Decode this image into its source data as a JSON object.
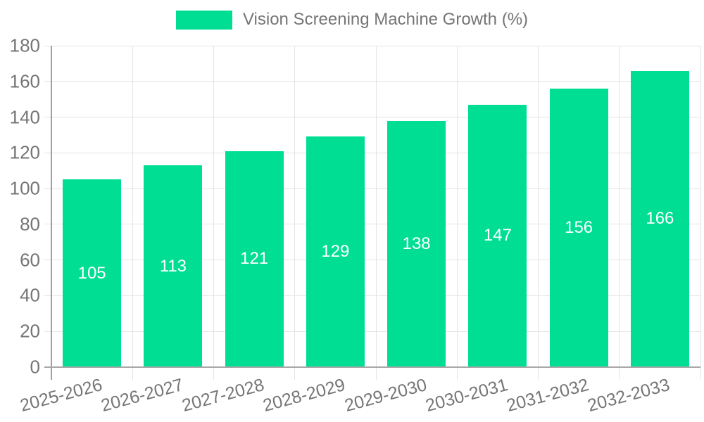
{
  "chart_data": {
    "type": "bar",
    "title": "",
    "legend_entries": [
      "Vision Screening Machine Growth (%)"
    ],
    "legend_position": "top",
    "categories": [
      "2025-2026",
      "2026-2027",
      "2027-2028",
      "2028-2029",
      "2029-2030",
      "2030-2031",
      "2031-2032",
      "2032-2033"
    ],
    "series": [
      {
        "name": "Vision Screening Machine Growth (%)",
        "values": [
          105,
          113,
          121,
          129,
          138,
          147,
          156,
          166
        ]
      }
    ],
    "xlabel": "",
    "ylabel": "",
    "ylim": [
      0,
      180
    ],
    "ytick_step": 20,
    "grid": "on",
    "value_labels": "inside-center",
    "colors": {
      "bar": "#00DE94",
      "value_label": "#ffffff",
      "axis_text": "#757575",
      "gridline": "#e4e4e4",
      "axis_line": "#a0a0a0",
      "background": "#ffffff"
    }
  }
}
